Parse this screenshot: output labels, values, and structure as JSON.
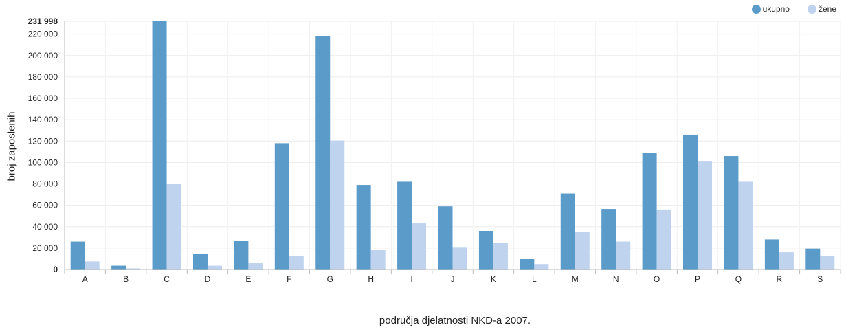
{
  "legend": {
    "total_label": "ukupno",
    "women_label": "žene"
  },
  "colors": {
    "total": "#5b9bca",
    "women": "#bfd3ee"
  },
  "chart_data": {
    "type": "bar",
    "title": "",
    "xlabel": "područja djelatnosti NKD-a 2007.",
    "ylabel": "broj zaposlenih",
    "ylim": [
      0,
      231998
    ],
    "y_ticks": [
      0,
      20000,
      40000,
      60000,
      80000,
      100000,
      120000,
      140000,
      160000,
      180000,
      200000,
      220000
    ],
    "y_tick_labels": [
      "0",
      "20 000",
      "40 000",
      "60 000",
      "80 000",
      "100 000",
      "120 000",
      "140 000",
      "160 000",
      "180 000",
      "200 000",
      "220 000"
    ],
    "y_max_label": "231 998",
    "grid": true,
    "legend_position": "top-right",
    "categories": [
      "A",
      "B",
      "C",
      "D",
      "E",
      "F",
      "G",
      "H",
      "I",
      "J",
      "K",
      "L",
      "M",
      "N",
      "O",
      "P",
      "Q",
      "R",
      "S"
    ],
    "series": [
      {
        "name": "ukupno",
        "values": [
          26000,
          3500,
          232000,
          14500,
          27000,
          118000,
          218000,
          79000,
          82000,
          59000,
          36000,
          10000,
          71000,
          56500,
          109000,
          126000,
          106000,
          28000,
          19500
        ]
      },
      {
        "name": "žene",
        "values": [
          7500,
          1000,
          80000,
          3500,
          6000,
          12500,
          120500,
          18500,
          43000,
          21000,
          25000,
          5000,
          35000,
          26000,
          56000,
          101500,
          82000,
          16000,
          12500
        ]
      }
    ]
  }
}
